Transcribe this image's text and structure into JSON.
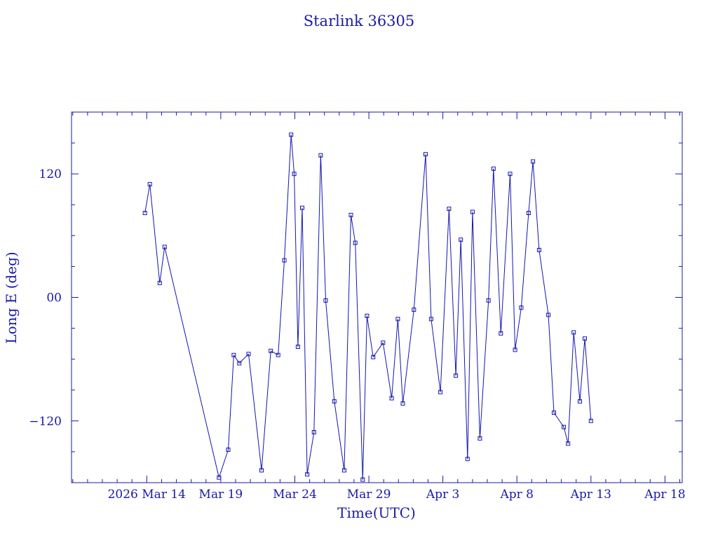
{
  "colors": {
    "ink": "#1a1aa6",
    "series": "#1515b0",
    "background": "#ffffff"
  },
  "chart_data": {
    "type": "scatter",
    "title": "Starlink 36305",
    "xlabel": "Time(UTC)",
    "ylabel": "Long E (deg)",
    "x_unit": "days",
    "xlim": [
      "2026-03-08T22:00",
      "2026-04-19T04:00"
    ],
    "ylim": [
      -180,
      180
    ],
    "x_ticks": [
      {
        "label": "2026 Mar 14",
        "date": "2026-03-14"
      },
      {
        "label": "Mar 19",
        "date": "2026-03-19"
      },
      {
        "label": "Mar 24",
        "date": "2026-03-24"
      },
      {
        "label": "Mar 29",
        "date": "2026-03-29"
      },
      {
        "label": "Apr  3",
        "date": "2026-04-03"
      },
      {
        "label": "Apr  8",
        "date": "2026-04-08"
      },
      {
        "label": "Apr 13",
        "date": "2026-04-13"
      },
      {
        "label": "Apr 18",
        "date": "2026-04-18"
      }
    ],
    "y_ticks": [
      {
        "label": "120",
        "value": 120
      },
      {
        "label": "00",
        "value": 0
      },
      {
        "label": "−120",
        "value": -120
      }
    ],
    "grid": false,
    "legend": "none",
    "series": [
      {
        "x": [
          "2026-03-13T21:00",
          "2026-03-14T05:00",
          "2026-03-14T21:00",
          "2026-03-15T05:00",
          "2026-03-18T21:00",
          "2026-03-19T12:00",
          "2026-03-19T21:00",
          "2026-03-20T06:00",
          "2026-03-20T21:00",
          "2026-03-21T18:00",
          "2026-03-22T09:00",
          "2026-03-22T21:00",
          "2026-03-23T07:00",
          "2026-03-23T18:00",
          "2026-03-23T23:00",
          "2026-03-24T05:00",
          "2026-03-24T12:00",
          "2026-03-24T20:00",
          "2026-03-25T07:00",
          "2026-03-25T18:00",
          "2026-03-26T02:00",
          "2026-03-26T16:00",
          "2026-03-27T08:00",
          "2026-03-27T19:00",
          "2026-03-28T02:00",
          "2026-03-28T14:00",
          "2026-03-28T21:00",
          "2026-03-29T07:00",
          "2026-03-29T23:00",
          "2026-03-30T13:00",
          "2026-03-30T23:00",
          "2026-03-31T07:00",
          "2026-04-01T01:00",
          "2026-04-01T20:00",
          "2026-04-02T05:00",
          "2026-04-02T20:00",
          "2026-04-03T10:00",
          "2026-04-03T21:00",
          "2026-04-04T05:00",
          "2026-04-04T16:00",
          "2026-04-05T00:00",
          "2026-04-05T12:00",
          "2026-04-06T02:00",
          "2026-04-06T10:00",
          "2026-04-06T22:00",
          "2026-04-07T13:00",
          "2026-04-07T21:00",
          "2026-04-08T07:00",
          "2026-04-08T19:00",
          "2026-04-09T02:00",
          "2026-04-09T12:00",
          "2026-04-10T03:00",
          "2026-04-10T12:00",
          "2026-04-11T04:00",
          "2026-04-11T11:00",
          "2026-04-11T20:00",
          "2026-04-12T06:00",
          "2026-04-12T14:00",
          "2026-04-13T00:00"
        ],
        "y": [
          82,
          110,
          14,
          49,
          -175,
          -148,
          -56,
          -64,
          -55,
          -168,
          -52,
          -56,
          36,
          158,
          120,
          -48,
          87,
          -172,
          -131,
          138,
          -3,
          -101,
          -168,
          80,
          53,
          -177,
          -18,
          -58,
          -44,
          -98,
          -21,
          -103,
          -12,
          139,
          -21,
          -92,
          86,
          -76,
          56,
          -157,
          83,
          -137,
          -3,
          125,
          -35,
          120,
          -51,
          -10,
          82,
          132,
          46,
          -17,
          -112,
          -126,
          -142,
          -34,
          -101,
          -40,
          -120
        ]
      }
    ]
  }
}
